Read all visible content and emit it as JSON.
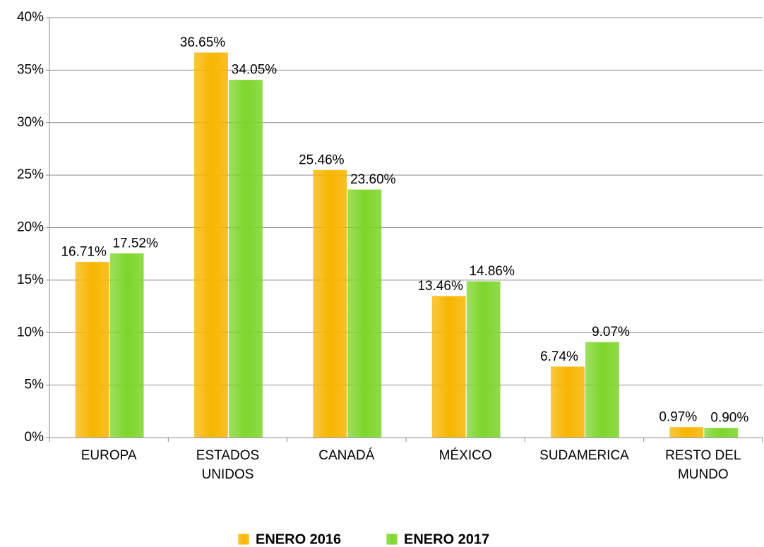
{
  "chart_data": {
    "type": "bar",
    "categories": [
      "EUROPA",
      "ESTADOS UNIDOS",
      "CANADÁ",
      "MÉXICO",
      "SUDAMERICA",
      "RESTO DEL MUNDO"
    ],
    "series": [
      {
        "name": "ENERO 2016",
        "color": "#f7b500",
        "values": [
          16.71,
          36.65,
          25.46,
          13.46,
          6.74,
          0.97
        ],
        "value_labels": [
          "16.71%",
          "36.65%",
          "25.46%",
          "13.46%",
          "6.74%",
          "0.97%"
        ]
      },
      {
        "name": "ENERO 2017",
        "color": "#7dd52a",
        "values": [
          17.52,
          34.05,
          23.6,
          14.86,
          9.07,
          0.9
        ],
        "value_labels": [
          "17.52%",
          "34.05%",
          "23.60%",
          "14.86%",
          "9.07%",
          "0.90%"
        ]
      }
    ],
    "ylim": [
      0,
      40
    ],
    "yticks": [
      {
        "value": 0,
        "label": "0%"
      },
      {
        "value": 5,
        "label": "5%"
      },
      {
        "value": 10,
        "label": "10%"
      },
      {
        "value": 15,
        "label": "15%"
      },
      {
        "value": 20,
        "label": "20%"
      },
      {
        "value": 25,
        "label": "25%"
      },
      {
        "value": 30,
        "label": "30%"
      },
      {
        "value": 35,
        "label": "35%"
      },
      {
        "value": 40,
        "label": "40%"
      }
    ],
    "grid": true,
    "legend": "bottom"
  }
}
